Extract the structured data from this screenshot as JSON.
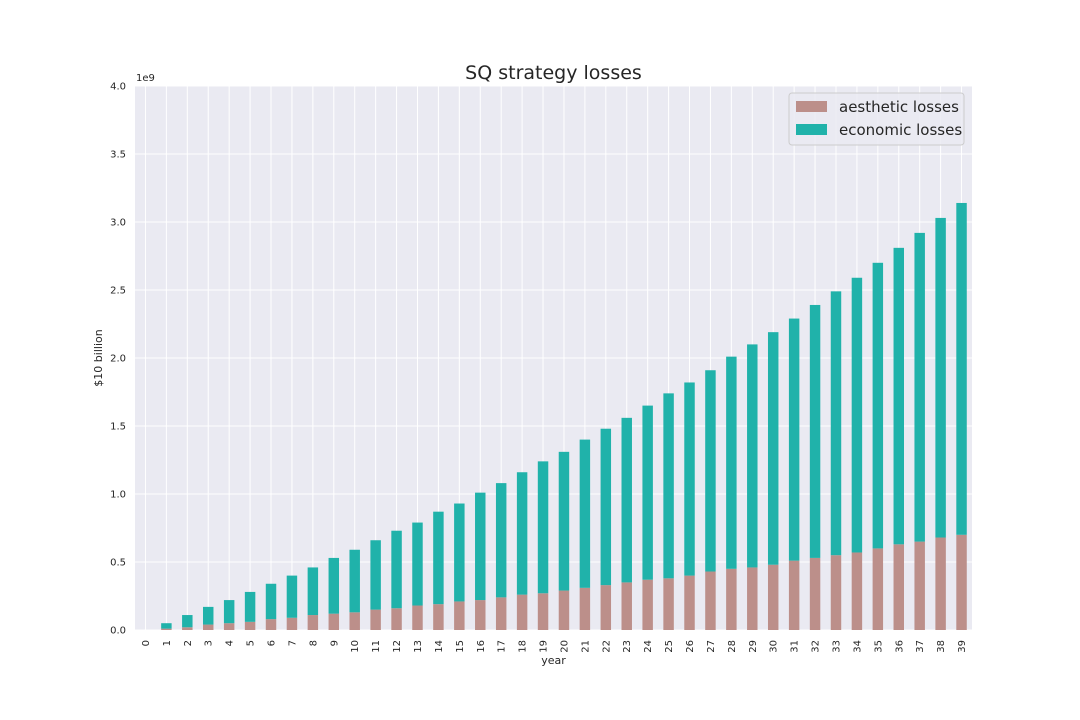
{
  "chart_data": {
    "type": "bar",
    "stacked": true,
    "title": "SQ strategy losses",
    "xlabel": "year",
    "ylabel": "$10 billion",
    "y_offset_label": "1e9",
    "ylim": [
      0,
      4.0
    ],
    "yticks": [
      "0.0",
      "0.5",
      "1.0",
      "1.5",
      "2.0",
      "2.5",
      "3.0",
      "3.5",
      "4.0"
    ],
    "grid": true,
    "legend_position": "top-right",
    "categories": [
      "0",
      "1",
      "2",
      "3",
      "4",
      "5",
      "6",
      "7",
      "8",
      "9",
      "10",
      "11",
      "12",
      "13",
      "14",
      "15",
      "16",
      "17",
      "18",
      "19",
      "20",
      "21",
      "22",
      "23",
      "24",
      "25",
      "26",
      "27",
      "28",
      "29",
      "30",
      "31",
      "32",
      "33",
      "34",
      "35",
      "36",
      "37",
      "38",
      "39"
    ],
    "series": [
      {
        "name": "aesthetic losses",
        "color": "#bc8f8a",
        "values": [
          0,
          0.01,
          0.02,
          0.04,
          0.05,
          0.06,
          0.08,
          0.09,
          0.11,
          0.12,
          0.13,
          0.15,
          0.16,
          0.18,
          0.19,
          0.21,
          0.22,
          0.24,
          0.26,
          0.27,
          0.29,
          0.31,
          0.33,
          0.35,
          0.37,
          0.38,
          0.4,
          0.43,
          0.45,
          0.46,
          0.48,
          0.51,
          0.53,
          0.55,
          0.57,
          0.6,
          0.63,
          0.65,
          0.68,
          0.7
        ]
      },
      {
        "name": "economic losses",
        "color": "#20b2aa",
        "values": [
          0,
          0.04,
          0.09,
          0.13,
          0.17,
          0.22,
          0.26,
          0.31,
          0.35,
          0.41,
          0.46,
          0.51,
          0.57,
          0.61,
          0.68,
          0.72,
          0.79,
          0.84,
          0.9,
          0.97,
          1.02,
          1.09,
          1.15,
          1.21,
          1.28,
          1.36,
          1.42,
          1.48,
          1.56,
          1.64,
          1.71,
          1.78,
          1.86,
          1.94,
          2.02,
          2.1,
          2.18,
          2.27,
          2.35,
          2.44
        ]
      }
    ]
  }
}
